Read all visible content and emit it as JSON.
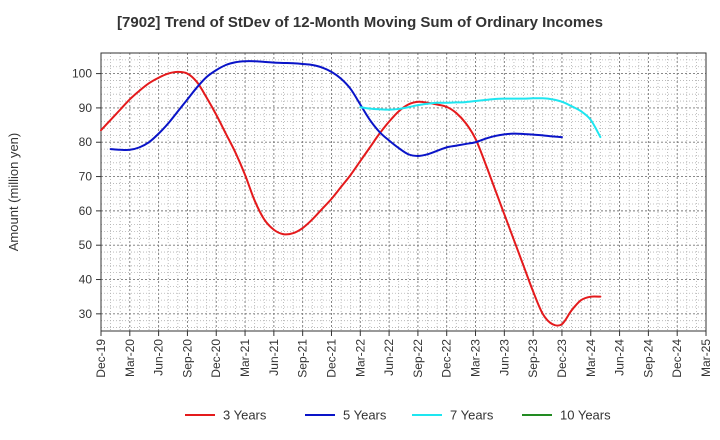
{
  "chart_data": {
    "type": "line",
    "title": "[7902]  Trend of StDev of 12-Month Moving Sum of Ordinary Incomes",
    "ylabel": "Amount (million yen)",
    "xlabel": "",
    "ylim": [
      25,
      106
    ],
    "y_ticks": [
      30,
      40,
      50,
      60,
      70,
      80,
      90,
      100
    ],
    "x_ticks": [
      "Dec-19",
      "Mar-20",
      "Jun-20",
      "Sep-20",
      "Dec-20",
      "Mar-21",
      "Jun-21",
      "Sep-21",
      "Dec-21",
      "Mar-22",
      "Jun-22",
      "Sep-22",
      "Dec-22",
      "Mar-23",
      "Jun-23",
      "Sep-23",
      "Dec-23",
      "Mar-24",
      "Jun-24",
      "Sep-24",
      "Dec-24",
      "Mar-25"
    ],
    "grid": true,
    "legend_position": "bottom",
    "series": [
      {
        "name": "3 Years",
        "color": "#e41a1c",
        "points": [
          [
            "Dec-19",
            83.5
          ],
          [
            "Jan-20",
            86.5
          ],
          [
            "Feb-20",
            89.5
          ],
          [
            "Mar-20",
            92.5
          ],
          [
            "Apr-20",
            95
          ],
          [
            "May-20",
            97.2
          ],
          [
            "Jun-20",
            98.8
          ],
          [
            "Jul-20",
            100
          ],
          [
            "Aug-20",
            100.5
          ],
          [
            "Sep-20",
            100
          ],
          [
            "Oct-20",
            97.5
          ],
          [
            "Nov-20",
            93
          ],
          [
            "Dec-20",
            88
          ],
          [
            "Jan-21",
            82.5
          ],
          [
            "Feb-21",
            77
          ],
          [
            "Mar-21",
            70.5
          ],
          [
            "Apr-21",
            63
          ],
          [
            "May-21",
            57.5
          ],
          [
            "Jun-21",
            54.5
          ],
          [
            "Jul-21",
            53.2
          ],
          [
            "Aug-21",
            53.5
          ],
          [
            "Sep-21",
            55
          ],
          [
            "Oct-21",
            57.5
          ],
          [
            "Nov-21",
            60.5
          ],
          [
            "Dec-21",
            63.5
          ],
          [
            "Jan-22",
            67
          ],
          [
            "Feb-22",
            70.5
          ],
          [
            "Mar-22",
            74.5
          ],
          [
            "Apr-22",
            78.5
          ],
          [
            "May-22",
            82.5
          ],
          [
            "Jun-22",
            86
          ],
          [
            "Jul-22",
            89
          ],
          [
            "Aug-22",
            91
          ],
          [
            "Sep-22",
            91.8
          ],
          [
            "Oct-22",
            91.5
          ],
          [
            "Nov-22",
            91
          ],
          [
            "Dec-22",
            90.3
          ],
          [
            "Jan-23",
            88.5
          ],
          [
            "Feb-23",
            85.5
          ],
          [
            "Mar-23",
            81
          ],
          [
            "Apr-23",
            74
          ],
          [
            "May-23",
            66.5
          ],
          [
            "Jun-23",
            59
          ],
          [
            "Jul-23",
            51.5
          ],
          [
            "Aug-23",
            44
          ],
          [
            "Sep-23",
            36.5
          ],
          [
            "Oct-23",
            30
          ],
          [
            "Nov-23",
            27
          ],
          [
            "Dec-23",
            27
          ],
          [
            "Jan-24",
            31
          ],
          [
            "Feb-24",
            34
          ],
          [
            "Mar-24",
            35
          ],
          [
            "Apr-24",
            35
          ]
        ]
      },
      {
        "name": "5 Years",
        "color": "#0a14c8",
        "points": [
          [
            "Jan-20",
            78
          ],
          [
            "Feb-20",
            77.8
          ],
          [
            "Mar-20",
            77.8
          ],
          [
            "Apr-20",
            78.5
          ],
          [
            "May-20",
            80
          ],
          [
            "Jun-20",
            82.5
          ],
          [
            "Jul-20",
            85.5
          ],
          [
            "Aug-20",
            89
          ],
          [
            "Sep-20",
            92.5
          ],
          [
            "Oct-20",
            96
          ],
          [
            "Nov-20",
            99
          ],
          [
            "Dec-20",
            101
          ],
          [
            "Jan-21",
            102.5
          ],
          [
            "Feb-21",
            103.3
          ],
          [
            "Mar-21",
            103.6
          ],
          [
            "Apr-21",
            103.6
          ],
          [
            "May-21",
            103.4
          ],
          [
            "Jun-21",
            103.2
          ],
          [
            "Jul-21",
            103.1
          ],
          [
            "Aug-21",
            103
          ],
          [
            "Sep-21",
            102.8
          ],
          [
            "Oct-21",
            102.5
          ],
          [
            "Nov-21",
            101.8
          ],
          [
            "Dec-21",
            100.5
          ],
          [
            "Jan-22",
            98.5
          ],
          [
            "Feb-22",
            95.5
          ],
          [
            "Mar-22",
            91
          ],
          [
            "Apr-22",
            86.5
          ],
          [
            "May-22",
            83
          ],
          [
            "Jun-22",
            80.5
          ],
          [
            "Jul-22",
            78.3
          ],
          [
            "Aug-22",
            76.5
          ],
          [
            "Sep-22",
            76
          ],
          [
            "Oct-22",
            76.5
          ],
          [
            "Nov-22",
            77.5
          ],
          [
            "Dec-22",
            78.5
          ],
          [
            "Jan-23",
            79
          ],
          [
            "Feb-23",
            79.5
          ],
          [
            "Mar-23",
            80
          ],
          [
            "Apr-23",
            81
          ],
          [
            "May-23",
            81.8
          ],
          [
            "Jun-23",
            82.3
          ],
          [
            "Jul-23",
            82.5
          ],
          [
            "Aug-23",
            82.4
          ],
          [
            "Sep-23",
            82.2
          ],
          [
            "Oct-23",
            82
          ],
          [
            "Nov-23",
            81.7
          ],
          [
            "Dec-23",
            81.5
          ]
        ]
      },
      {
        "name": "7 Years",
        "color": "#1ee6f0",
        "points": [
          [
            "Mar-22",
            90.2
          ],
          [
            "Apr-22",
            89.8
          ],
          [
            "May-22",
            89.6
          ],
          [
            "Jun-22",
            89.5
          ],
          [
            "Jul-22",
            89.7
          ],
          [
            "Aug-22",
            90.2
          ],
          [
            "Sep-22",
            90.8
          ],
          [
            "Oct-22",
            91.2
          ],
          [
            "Nov-22",
            91.5
          ],
          [
            "Dec-22",
            91.5
          ],
          [
            "Jan-23",
            91.6
          ],
          [
            "Feb-23",
            91.7
          ],
          [
            "Mar-23",
            92
          ],
          [
            "Apr-23",
            92.3
          ],
          [
            "May-23",
            92.6
          ],
          [
            "Jun-23",
            92.7
          ],
          [
            "Jul-23",
            92.7
          ],
          [
            "Aug-23",
            92.7
          ],
          [
            "Sep-23",
            92.8
          ],
          [
            "Oct-23",
            92.8
          ],
          [
            "Nov-23",
            92.5
          ],
          [
            "Dec-23",
            91.8
          ],
          [
            "Jan-24",
            90.5
          ],
          [
            "Feb-24",
            89
          ],
          [
            "Mar-24",
            86.5
          ],
          [
            "Apr-24",
            81.5
          ]
        ]
      },
      {
        "name": "10 Years",
        "color": "#228b22",
        "points": []
      }
    ]
  }
}
